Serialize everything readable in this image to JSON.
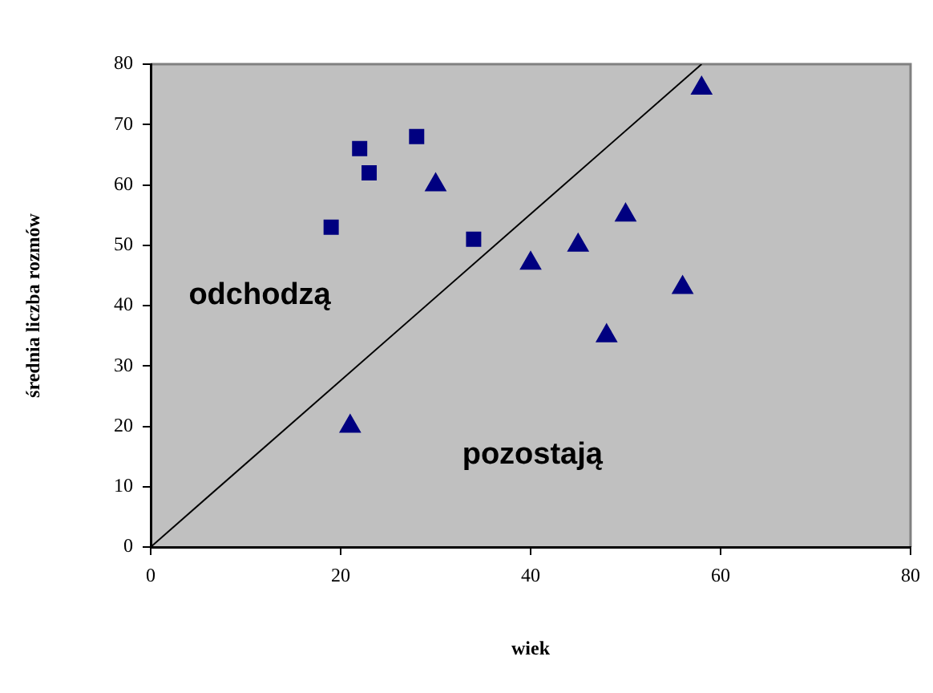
{
  "chart_data": {
    "type": "scatter",
    "xlabel": "wiek",
    "ylabel": "średnia liczba rozmów",
    "xlim": [
      0,
      80
    ],
    "xticks": [
      0,
      20,
      40,
      60,
      80
    ],
    "ylim": [
      0,
      80
    ],
    "yticks": [
      0,
      10,
      20,
      30,
      40,
      50,
      60,
      70,
      80
    ],
    "grid": false,
    "legend": false,
    "annotations": [
      "odchodzą",
      "pozostają"
    ],
    "series": [
      {
        "type": "scatter",
        "marker": "square",
        "color": "#000080",
        "x": [
          19,
          22,
          23,
          28,
          34
        ],
        "values": [
          53,
          66,
          62,
          68,
          51
        ]
      },
      {
        "type": "scatter",
        "marker": "triangle",
        "color": "#000080",
        "x": [
          21,
          30,
          40,
          45,
          48,
          50,
          56,
          58
        ],
        "values": [
          20,
          60,
          47,
          50,
          35,
          55,
          43,
          76
        ]
      },
      {
        "type": "line",
        "marker": "none",
        "line_style": "solid",
        "color": "#000000",
        "x": [
          0,
          58
        ],
        "values": [
          0,
          80
        ]
      }
    ]
  }
}
